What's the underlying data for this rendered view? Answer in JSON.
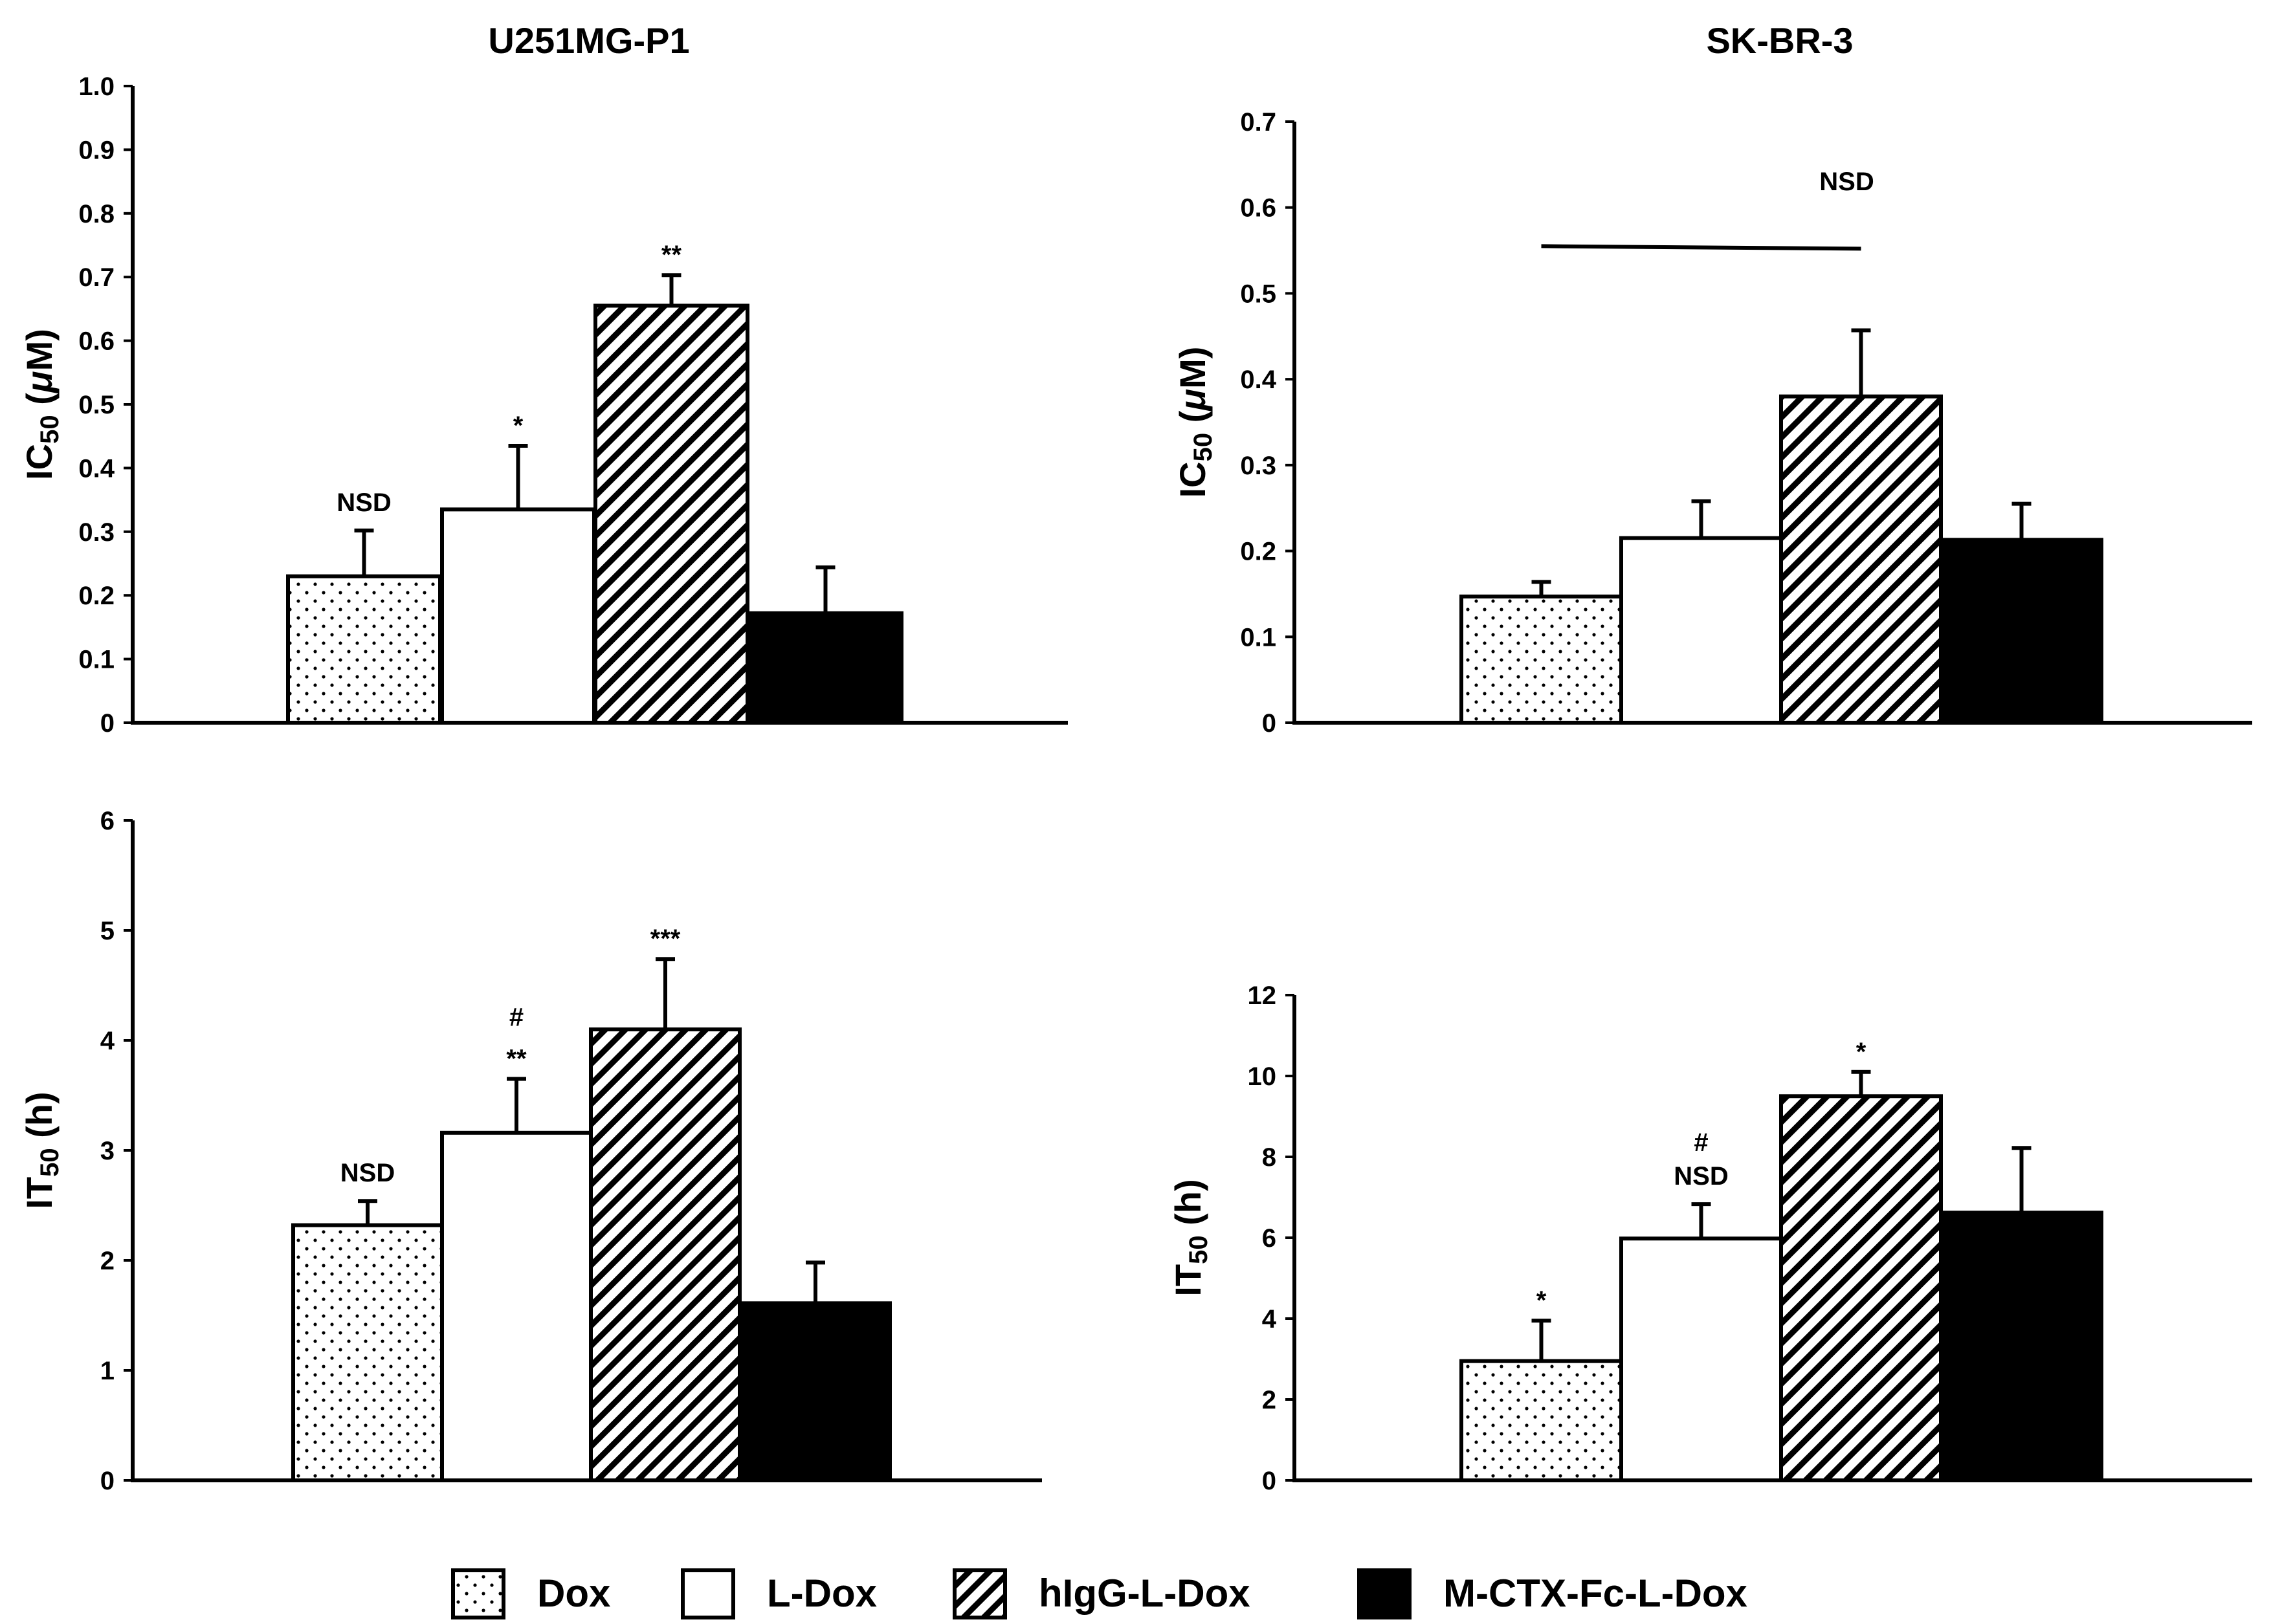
{
  "chart_data": [
    {
      "id": "u251-ic50",
      "type": "bar",
      "title": "U251MG-P1",
      "ylabel": {
        "main": "IC",
        "sub": "50",
        "unit_open": " (",
        "unit_mu": "μ",
        "unit_rest": "M)"
      },
      "ylim": [
        0,
        1.0
      ],
      "yticks": [
        0,
        0.1,
        0.2,
        0.3,
        0.4,
        0.5,
        0.6,
        0.7,
        0.8,
        0.9,
        1.0
      ],
      "ytick_labels": [
        "0",
        "0.1",
        "0.2",
        "0.3",
        "0.4",
        "0.5",
        "0.6",
        "0.7",
        "0.8",
        "0.9",
        "1.0"
      ],
      "categories": [
        "Dox",
        "L-Dox",
        "hIgG-L-Dox",
        "M-CTX-Fc-L-Dox"
      ],
      "values": [
        0.23,
        0.335,
        0.655,
        0.172
      ],
      "errors": [
        0.072,
        0.1,
        0.048,
        0.072
      ],
      "annotations": [
        {
          "bar": 0,
          "lines": [
            "NSD"
          ]
        },
        {
          "bar": 1,
          "lines": [
            "*"
          ]
        },
        {
          "bar": 2,
          "lines": [
            "**"
          ]
        }
      ]
    },
    {
      "id": "skbr3-ic50",
      "type": "bar",
      "title": "SK-BR-3",
      "ylabel": {
        "main": "IC",
        "sub": "50",
        "unit_open": " (",
        "unit_mu": "μ",
        "unit_rest": "M)"
      },
      "ylim": [
        0,
        0.7
      ],
      "yticks": [
        0,
        0.1,
        0.2,
        0.3,
        0.4,
        0.5,
        0.6,
        0.7
      ],
      "ytick_labels": [
        "0",
        "0.1",
        "0.2",
        "0.3",
        "0.4",
        "0.5",
        "0.6",
        "0.7"
      ],
      "categories": [
        "Dox",
        "L-Dox",
        "hIgG-L-Dox",
        "M-CTX-Fc-L-Dox"
      ],
      "values": [
        0.147,
        0.215,
        0.38,
        0.213
      ],
      "errors": [
        0.017,
        0.043,
        0.077,
        0.042
      ],
      "bracket": {
        "from_bar": 0,
        "to_bar": 2,
        "y": 0.555,
        "label": "NSD",
        "label_y": 0.62
      }
    },
    {
      "id": "u251-it50",
      "type": "bar",
      "title": "",
      "ylabel": {
        "main": "IT",
        "sub": "50",
        "unit_open": " (h)",
        "unit_mu": "",
        "unit_rest": ""
      },
      "ylim": [
        0,
        6
      ],
      "yticks": [
        0,
        1,
        2,
        3,
        4,
        5,
        6
      ],
      "ytick_labels": [
        "0",
        "1",
        "2",
        "3",
        "4",
        "5",
        "6"
      ],
      "categories": [
        "Dox",
        "L-Dox",
        "hIgG-L-Dox",
        "M-CTX-Fc-L-Dox"
      ],
      "values": [
        2.32,
        3.16,
        4.1,
        1.61
      ],
      "errors": [
        0.22,
        0.49,
        0.64,
        0.37
      ],
      "annotations": [
        {
          "bar": 0,
          "lines": [
            "NSD"
          ]
        },
        {
          "bar": 1,
          "lines": [
            "#",
            "**"
          ]
        },
        {
          "bar": 2,
          "lines": [
            "***"
          ]
        }
      ]
    },
    {
      "id": "skbr3-it50",
      "type": "bar",
      "title": "",
      "ylabel": {
        "main": "IT",
        "sub": "50",
        "unit_open": " (h)",
        "unit_mu": "",
        "unit_rest": ""
      },
      "ylim": [
        0,
        12
      ],
      "yticks": [
        0,
        2,
        4,
        6,
        8,
        10,
        12
      ],
      "ytick_labels": [
        "0",
        "2",
        "4",
        "6",
        "8",
        "10",
        "12"
      ],
      "categories": [
        "Dox",
        "L-Dox",
        "hIgG-L-Dox",
        "M-CTX-Fc-L-Dox"
      ],
      "values": [
        2.95,
        5.98,
        9.5,
        6.62
      ],
      "errors": [
        1.0,
        0.85,
        0.6,
        1.6
      ],
      "annotations": [
        {
          "bar": 0,
          "lines": [
            "*"
          ]
        },
        {
          "bar": 1,
          "lines": [
            "#",
            "NSD"
          ]
        },
        {
          "bar": 2,
          "lines": [
            "*"
          ]
        }
      ]
    }
  ],
  "legend": {
    "items": [
      {
        "label": "Dox",
        "pattern": "dots"
      },
      {
        "label": "L-Dox",
        "pattern": "white"
      },
      {
        "label": "hIgG-L-Dox",
        "pattern": "hatch"
      },
      {
        "label": "M-CTX-Fc-L-Dox",
        "pattern": "black"
      }
    ]
  },
  "colors": {
    "ink": "#000000",
    "paper": "#ffffff"
  }
}
